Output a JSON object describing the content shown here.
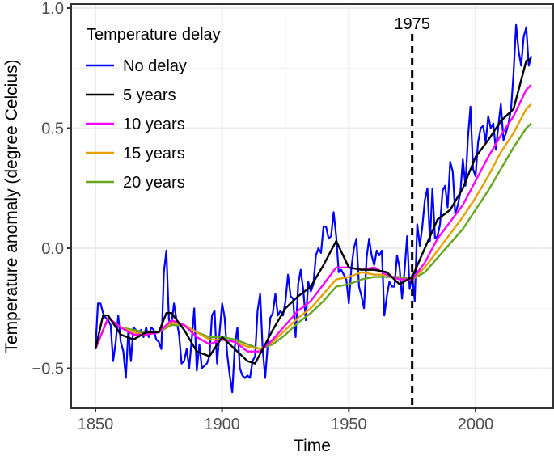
{
  "chart_data": {
    "type": "line",
    "xlabel": "Time",
    "ylabel": "Temperature anomaly (degree Celcius)",
    "xlim": [
      1843,
      2029
    ],
    "ylim": [
      -0.67,
      1.02
    ],
    "x_ticks": [
      1850,
      1900,
      1950,
      2000
    ],
    "x_tick_labels": [
      "1850",
      "1900",
      "1950",
      "2000"
    ],
    "y_ticks": [
      -0.5,
      0.0,
      0.5,
      1.0
    ],
    "y_tick_labels": [
      "-0.5",
      "0.0",
      "0.5",
      "1.0"
    ],
    "grid": true,
    "legend": {
      "title": "Temperature delay",
      "placement": "top-left"
    },
    "annotation": {
      "label": "1975",
      "x": 1975,
      "style": "dashed vertical line"
    },
    "series": [
      {
        "name": "No delay",
        "color": "#0000FF",
        "x_start": 1850,
        "values": [
          -0.42,
          -0.23,
          -0.23,
          -0.27,
          -0.29,
          -0.3,
          -0.32,
          -0.47,
          -0.39,
          -0.28,
          -0.39,
          -0.43,
          -0.54,
          -0.34,
          -0.47,
          -0.33,
          -0.34,
          -0.36,
          -0.34,
          -0.37,
          -0.33,
          -0.37,
          -0.33,
          -0.34,
          -0.38,
          -0.39,
          -0.42,
          -0.1,
          -0.01,
          -0.3,
          -0.32,
          -0.23,
          -0.3,
          -0.36,
          -0.48,
          -0.47,
          -0.42,
          -0.5,
          -0.38,
          -0.25,
          -0.51,
          -0.4,
          -0.5,
          -0.49,
          -0.48,
          -0.45,
          -0.28,
          -0.26,
          -0.48,
          -0.35,
          -0.23,
          -0.29,
          -0.44,
          -0.53,
          -0.6,
          -0.41,
          -0.33,
          -0.5,
          -0.53,
          -0.54,
          -0.53,
          -0.54,
          -0.47,
          -0.45,
          -0.26,
          -0.19,
          -0.42,
          -0.54,
          -0.4,
          -0.29,
          -0.27,
          -0.19,
          -0.28,
          -0.26,
          -0.28,
          -0.22,
          -0.11,
          -0.2,
          -0.21,
          -0.37,
          -0.15,
          -0.09,
          -0.17,
          -0.3,
          -0.14,
          -0.18,
          -0.15,
          -0.03,
          0.0,
          -0.02,
          0.09,
          0.09,
          0.04,
          0.05,
          0.15,
          0.05,
          -0.1,
          -0.09,
          -0.11,
          -0.13,
          -0.23,
          -0.08,
          0.0,
          0.04,
          -0.16,
          -0.2,
          -0.25,
          -0.04,
          0.04,
          -0.03,
          -0.07,
          -0.01,
          -0.03,
          -0.01,
          -0.28,
          -0.2,
          -0.14,
          -0.16,
          -0.16,
          -0.03,
          -0.08,
          -0.21,
          -0.09,
          0.05,
          -0.17,
          -0.11,
          -0.22,
          0.1,
          0.01,
          0.09,
          0.2,
          0.25,
          0.03,
          0.25,
          0.04,
          0.05,
          0.1,
          0.24,
          0.26,
          0.17,
          0.36,
          0.32,
          0.14,
          0.18,
          0.23,
          0.37,
          0.26,
          0.46,
          0.59,
          0.33,
          0.3,
          0.44,
          0.5,
          0.51,
          0.44,
          0.55,
          0.5,
          0.52,
          0.41,
          0.51,
          0.6,
          0.45,
          0.48,
          0.52,
          0.58,
          0.73,
          0.93,
          0.82,
          0.76,
          0.88,
          0.92,
          0.76,
          0.8
        ]
      },
      {
        "name": "5 years",
        "color": "#000000",
        "x": [
          1850,
          1853,
          1855,
          1860,
          1865,
          1870,
          1875,
          1878,
          1880,
          1885,
          1890,
          1895,
          1900,
          1905,
          1910,
          1913,
          1915,
          1920,
          1925,
          1930,
          1935,
          1940,
          1945,
          1950,
          1955,
          1960,
          1965,
          1970,
          1975,
          1980,
          1985,
          1990,
          1995,
          2000,
          2005,
          2010,
          2015,
          2020,
          2022
        ],
        "values": [
          -0.42,
          -0.28,
          -0.28,
          -0.36,
          -0.38,
          -0.35,
          -0.35,
          -0.27,
          -0.27,
          -0.34,
          -0.43,
          -0.45,
          -0.37,
          -0.42,
          -0.47,
          -0.48,
          -0.44,
          -0.34,
          -0.25,
          -0.2,
          -0.16,
          -0.07,
          0.03,
          -0.08,
          -0.09,
          -0.09,
          -0.1,
          -0.15,
          -0.12,
          0.0,
          0.12,
          0.16,
          0.25,
          0.38,
          0.45,
          0.53,
          0.58,
          0.78,
          0.79
        ]
      },
      {
        "name": "10 years",
        "color": "#FF00FF",
        "x": [
          1850,
          1855,
          1860,
          1865,
          1870,
          1875,
          1880,
          1885,
          1890,
          1895,
          1900,
          1905,
          1910,
          1915,
          1920,
          1925,
          1930,
          1935,
          1940,
          1945,
          1950,
          1955,
          1960,
          1965,
          1970,
          1975,
          1980,
          1985,
          1990,
          1995,
          2000,
          2005,
          2010,
          2015,
          2020,
          2022
        ],
        "values": [
          -0.42,
          -0.29,
          -0.33,
          -0.36,
          -0.36,
          -0.35,
          -0.3,
          -0.32,
          -0.37,
          -0.4,
          -0.38,
          -0.39,
          -0.43,
          -0.43,
          -0.38,
          -0.32,
          -0.26,
          -0.22,
          -0.15,
          -0.08,
          -0.08,
          -0.09,
          -0.08,
          -0.11,
          -0.13,
          -0.13,
          -0.06,
          0.04,
          0.11,
          0.18,
          0.28,
          0.38,
          0.47,
          0.55,
          0.66,
          0.68
        ]
      },
      {
        "name": "15 years",
        "color": "#E6A000",
        "x": [
          1850,
          1855,
          1860,
          1865,
          1870,
          1875,
          1880,
          1885,
          1890,
          1895,
          1900,
          1905,
          1910,
          1915,
          1920,
          1925,
          1930,
          1935,
          1940,
          1945,
          1950,
          1955,
          1960,
          1965,
          1970,
          1975,
          1980,
          1985,
          1990,
          1995,
          2000,
          2005,
          2010,
          2015,
          2020,
          2022
        ],
        "values": [
          -0.42,
          -0.29,
          -0.33,
          -0.35,
          -0.36,
          -0.35,
          -0.31,
          -0.32,
          -0.35,
          -0.38,
          -0.38,
          -0.39,
          -0.41,
          -0.42,
          -0.39,
          -0.34,
          -0.29,
          -0.25,
          -0.19,
          -0.13,
          -0.12,
          -0.1,
          -0.11,
          -0.11,
          -0.13,
          -0.13,
          -0.08,
          -0.01,
          0.06,
          0.13,
          0.21,
          0.3,
          0.4,
          0.48,
          0.58,
          0.6
        ]
      },
      {
        "name": "20 years",
        "color": "#66A61E",
        "x": [
          1850,
          1855,
          1860,
          1865,
          1870,
          1875,
          1880,
          1885,
          1890,
          1895,
          1900,
          1905,
          1910,
          1915,
          1920,
          1925,
          1930,
          1935,
          1940,
          1945,
          1950,
          1955,
          1960,
          1965,
          1970,
          1975,
          1980,
          1985,
          1990,
          1995,
          2000,
          2005,
          2010,
          2015,
          2020,
          2022
        ],
        "values": [
          -0.42,
          -0.29,
          -0.33,
          -0.34,
          -0.35,
          -0.35,
          -0.32,
          -0.32,
          -0.35,
          -0.37,
          -0.37,
          -0.38,
          -0.4,
          -0.42,
          -0.4,
          -0.36,
          -0.31,
          -0.27,
          -0.22,
          -0.16,
          -0.15,
          -0.13,
          -0.12,
          -0.12,
          -0.12,
          -0.13,
          -0.1,
          -0.04,
          0.02,
          0.08,
          0.16,
          0.24,
          0.33,
          0.42,
          0.5,
          0.52
        ]
      }
    ]
  }
}
